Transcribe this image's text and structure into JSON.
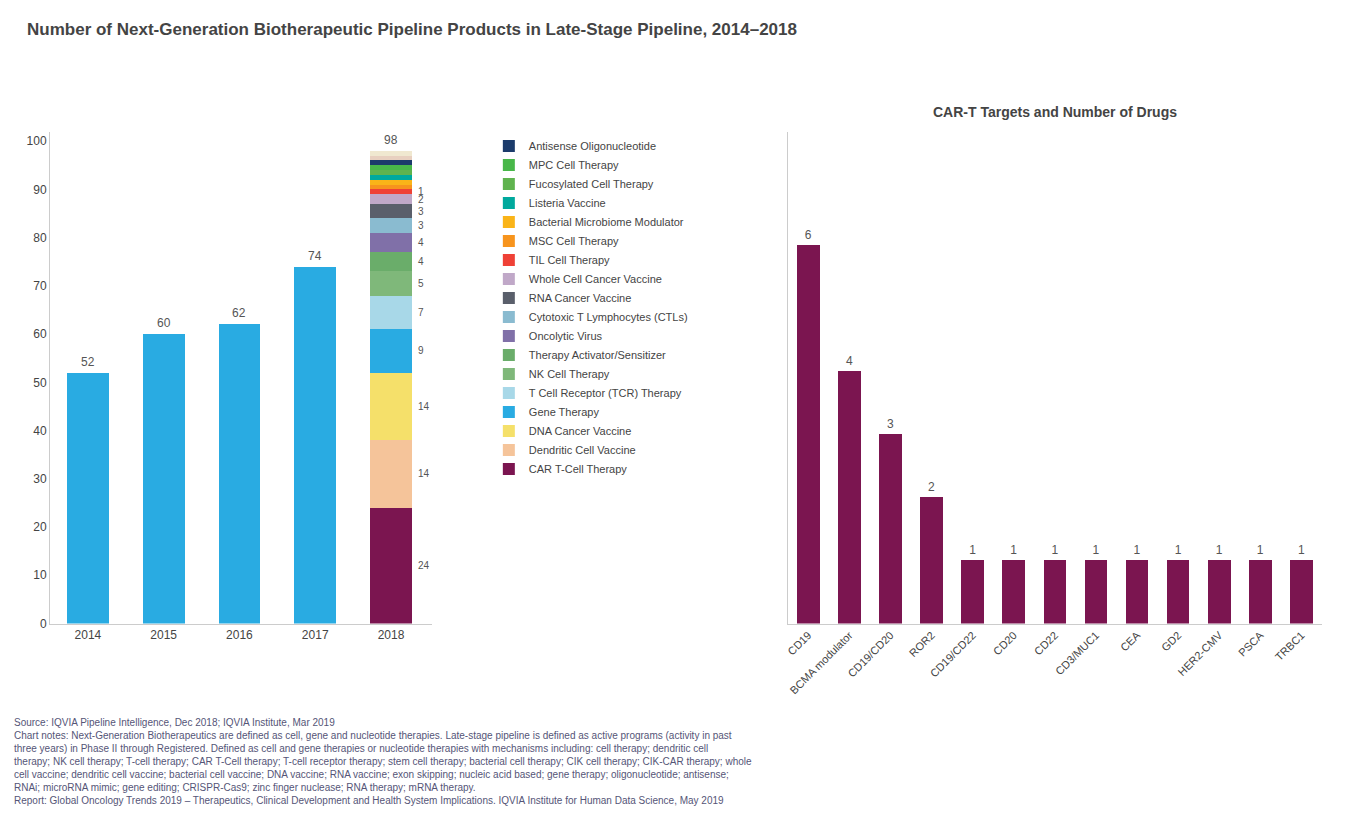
{
  "chart_data": [
    {
      "type": "bar",
      "title": "Number of Next-Generation Biotherapeutic Pipeline Products in Late-Stage Pipeline, 2014–2018",
      "stacked": true,
      "categories": [
        "2014",
        "2015",
        "2016",
        "2017",
        "2018"
      ],
      "series": [
        {
          "color": "#29ABE2",
          "values": [
            52,
            60,
            62,
            74,
            null
          ],
          "data_labels": true
        },
        {
          "name": "CAR T-Cell Therapy",
          "color": "#7B1550",
          "values": [
            null,
            null,
            null,
            null,
            24
          ],
          "data_labels": true
        },
        {
          "name": "Dendritic Cell Vaccine",
          "color": "#F5C49A",
          "values": [
            null,
            null,
            null,
            null,
            14
          ],
          "data_labels": true
        },
        {
          "name": "DNA Cancer Vaccine",
          "color": "#F5E06A",
          "values": [
            null,
            null,
            null,
            null,
            14
          ],
          "data_labels": true
        },
        {
          "name": "Gene Therapy",
          "color": "#29ABE2",
          "values": [
            null,
            null,
            null,
            null,
            9
          ],
          "data_labels": true
        },
        {
          "name": "T Cell Receptor (TCR) Therapy",
          "color": "#A8D8E8",
          "values": [
            null,
            null,
            null,
            null,
            7
          ],
          "data_labels": true
        },
        {
          "name": "NK Cell Therapy",
          "color": "#7FB87A",
          "values": [
            null,
            null,
            null,
            null,
            5
          ],
          "data_labels": true
        },
        {
          "name": "Therapy Activator/Sensitizer",
          "color": "#6AAD6A",
          "values": [
            null,
            null,
            null,
            null,
            4
          ],
          "data_labels": true
        },
        {
          "name": "Oncolytic Virus",
          "color": "#8070A8",
          "values": [
            null,
            null,
            null,
            null,
            4
          ],
          "data_labels": true
        },
        {
          "name": "Cytotoxic T Lymphocytes (CTLs)",
          "color": "#8ABBD0",
          "values": [
            null,
            null,
            null,
            null,
            3
          ],
          "data_labels": true
        },
        {
          "name": "RNA Cancer Vaccine",
          "color": "#5A5F6B",
          "values": [
            null,
            null,
            null,
            null,
            3
          ],
          "data_labels": true
        },
        {
          "name": "Whole Cell Cancer Vaccine",
          "color": "#C0A8C8",
          "values": [
            null,
            null,
            null,
            null,
            2
          ],
          "data_labels": true
        },
        {
          "name": "TIL Cell Therapy",
          "color": "#EF4136",
          "values": [
            null,
            null,
            null,
            null,
            1
          ],
          "data_labels": true
        },
        {
          "name": "MSC Cell Therapy",
          "color": "#F7941D",
          "values": [
            null,
            null,
            null,
            null,
            1
          ],
          "data_labels": false
        },
        {
          "name": "Bacterial Microbiome Modulator",
          "color": "#FAB418",
          "values": [
            null,
            null,
            null,
            null,
            1
          ],
          "data_labels": false
        },
        {
          "name": "Listeria Vaccine",
          "color": "#00A99D",
          "values": [
            null,
            null,
            null,
            null,
            1
          ],
          "data_labels": false
        },
        {
          "name": "Fucosylated Cell Therapy",
          "color": "#5FB34E",
          "values": [
            null,
            null,
            null,
            null,
            1
          ],
          "data_labels": false
        },
        {
          "name": "MPC Cell Therapy",
          "color": "#48B749",
          "values": [
            null,
            null,
            null,
            null,
            1
          ],
          "data_labels": false
        },
        {
          "name": "Antisense Oligonucleotide",
          "color": "#1B3B6B",
          "values": [
            null,
            null,
            null,
            null,
            1
          ],
          "data_labels": false
        },
        {
          "color": "#E8D0C0",
          "values": [
            null,
            null,
            null,
            null,
            1
          ],
          "data_labels": false
        },
        {
          "color": "#F0E8D0",
          "values": [
            null,
            null,
            null,
            null,
            1
          ],
          "data_labels": false
        }
      ],
      "totals": [
        null,
        null,
        null,
        null,
        98
      ],
      "ylim": [
        0,
        102
      ],
      "yticks": [
        0,
        10,
        20,
        30,
        40,
        50,
        60,
        70,
        80,
        90,
        100
      ],
      "grid": false,
      "legend": "right",
      "annotations": [
        "Source: IQVIA Pipeline Intelligence, Dec 2018; IQVIA Institute, Mar 2019",
        "Chart notes: Next-Generation Biotherapeutics are defined as cell, gene and nucleotide therapies. Late-stage pipeline is defined as active programs (activity in past",
        "three years) in Phase II through Registered. Defined as cell and gene therapies or nucleotide therapies with mechanisms including: cell therapy; dendritic cell",
        "therapy; NK cell therapy; T-cell therapy; CAR T-Cell therapy; T-cell receptor therapy; stem cell therapy; bacterial cell therapy; CIK cell therapy; CIK-CAR therapy; whole",
        "cell vaccine; dendritic cell vaccine; bacterial cell vaccine; DNA vaccine; RNA vaccine; exon skipping; nucleic acid based; gene therapy; oligonucleotide; antisense;",
        "RNAi; microRNA mimic; gene editing; CRISPR-Cas9; zinc finger nuclease; RNA therapy; mRNA therapy.",
        "Report: Global Oncology Trends 2019 – Therapeutics, Clinical Development and Health System Implications. IQVIA Institute for Human Data Science, May 2019"
      ]
    },
    {
      "type": "bar",
      "title": "CAR-T Targets and Number of Drugs",
      "categories": [
        "CD19",
        "BCMA modulator",
        "CD19/CD20",
        "ROR2",
        "CD19/CD22",
        "CD20",
        "CD22",
        "CD3/MUC1",
        "CEA",
        "GD2",
        "HER2-CMV",
        "PSCA",
        "TRBC1"
      ],
      "values": [
        6,
        4,
        3,
        2,
        1,
        1,
        1,
        1,
        1,
        1,
        1,
        1,
        1
      ],
      "color": "#7B1550",
      "ylim": [
        0,
        7.8
      ],
      "yticks": [],
      "grid": false,
      "data_labels": true,
      "tick_labels": "x"
    }
  ]
}
